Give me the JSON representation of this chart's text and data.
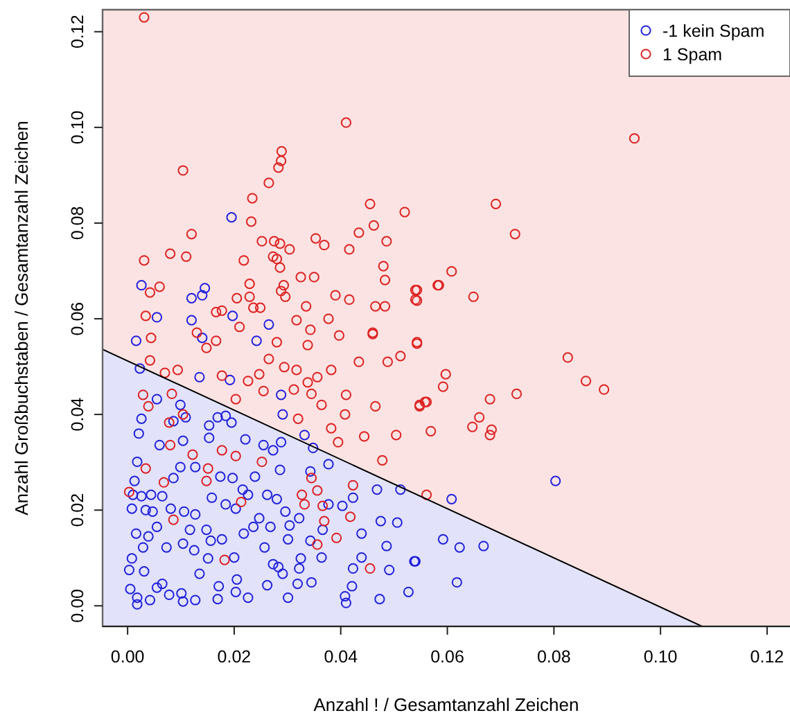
{
  "chart_data": {
    "type": "scatter",
    "xlabel": "Anzahl ! / Gesamtanzahl Zeichen",
    "ylabel": "Anzahl Großbuchstaben / Gesamtanzahl Zeichen",
    "xlim": [
      -0.0047,
      0.1243
    ],
    "ylim": [
      -0.0043,
      0.1246
    ],
    "xticks": [
      {
        "value": 0,
        "label": "0.00"
      },
      {
        "value": 0.02,
        "label": "0.02"
      },
      {
        "value": 0.04,
        "label": "0.04"
      },
      {
        "value": 0.06,
        "label": "0.06"
      },
      {
        "value": 0.08,
        "label": "0.08"
      },
      {
        "value": 0.1,
        "label": "0.10"
      },
      {
        "value": 0.12,
        "label": "0.12"
      }
    ],
    "yticks": [
      {
        "value": 0,
        "label": "0.00"
      },
      {
        "value": 0.02,
        "label": "0.02"
      },
      {
        "value": 0.04,
        "label": "0.04"
      },
      {
        "value": 0.06,
        "label": "0.06"
      },
      {
        "value": 0.08,
        "label": "0.08"
      },
      {
        "value": 0.1,
        "label": "0.10"
      },
      {
        "value": 0.12,
        "label": "0.12"
      }
    ],
    "legend": "top right",
    "marker": "circle",
    "grid": false,
    "series": [
      {
        "name": "-1 kein Spam",
        "color": "#2222dd",
        "x": [
          0.0026,
          0.0055,
          0.012,
          0.012,
          0.014,
          0.0145,
          0.0195,
          0.0197,
          0.0265,
          0.0016,
          0.014,
          0.0242,
          0.0803,
          0.0608,
          0.0592,
          0.0623,
          0.0668,
          0.0618,
          0.054,
          0.0023,
          0.0135,
          0.0192,
          0.0288,
          0.0291,
          0.0055,
          0.0099,
          0.0026,
          0.0021,
          0.006,
          0.0086,
          0.0104,
          0.0109,
          0.0153,
          0.0169,
          0.0184,
          0.0195,
          0.0153,
          0.0221,
          0.0273,
          0.0288,
          0.0255,
          0.0332,
          0.0348,
          0.0377,
          0.0343,
          0.0286,
          0.0239,
          0.0197,
          0.0174,
          0.0099,
          0.0127,
          0.0086,
          0.0018,
          0.0013,
          0.001,
          0.0026,
          0.0044,
          0.0065,
          0.0008,
          0.0034,
          0.0047,
          0.0081,
          0.0106,
          0.0127,
          0.0158,
          0.0184,
          0.0216,
          0.0226,
          0.0262,
          0.028,
          0.0296,
          0.0247,
          0.0203,
          0.0304,
          0.0322,
          0.0403,
          0.0423,
          0.0468,
          0.0512,
          0.0475,
          0.0506,
          0.0439,
          0.0486,
          0.0538,
          0.0439,
          0.0491,
          0.0421,
          0.0408,
          0.0473,
          0.0527,
          0.041,
          0.0364,
          0.0345,
          0.0319,
          0.0301,
          0.0322,
          0.0283,
          0.0273,
          0.0291,
          0.0262,
          0.0226,
          0.0205,
          0.0203,
          0.0171,
          0.0169,
          0.0135,
          0.0127,
          0.0104,
          0.0101,
          0.0078,
          0.0065,
          0.0055,
          0.0042,
          0.0018,
          0.0018,
          0.0005,
          0.0003,
          0.0008,
          0.0031,
          0.0029,
          0.0016,
          0.0039,
          0.0073,
          0.0104,
          0.0125,
          0.0156,
          0.0151,
          0.0177,
          0.0218,
          0.0257,
          0.02,
          0.0117,
          0.0055,
          0.0148,
          0.0236,
          0.0268,
          0.0343,
          0.0366,
          0.0377,
          0.0301,
          0.0325,
          0.0423
        ],
        "values": [
          0.067,
          0.0603,
          0.0597,
          0.0643,
          0.0649,
          0.0664,
          0.0812,
          0.0606,
          0.0588,
          0.0554,
          0.056,
          0.0554,
          0.0261,
          0.0223,
          0.0139,
          0.0122,
          0.0125,
          0.0049,
          0.0093,
          0.0496,
          0.0478,
          0.0472,
          0.0441,
          0.04,
          0.0432,
          0.042,
          0.0391,
          0.036,
          0.0336,
          0.0386,
          0.0345,
          0.0394,
          0.0377,
          0.0394,
          0.0397,
          0.0383,
          0.0351,
          0.0348,
          0.0325,
          0.0342,
          0.0336,
          0.0357,
          0.033,
          0.0296,
          0.0281,
          0.0284,
          0.027,
          0.0267,
          0.027,
          0.029,
          0.029,
          0.0267,
          0.0301,
          0.0261,
          0.0232,
          0.0229,
          0.0232,
          0.0229,
          0.0203,
          0.02,
          0.0197,
          0.0203,
          0.0197,
          0.0191,
          0.0226,
          0.0212,
          0.0243,
          0.0232,
          0.0232,
          0.0223,
          0.0197,
          0.0183,
          0.0203,
          0.0168,
          0.0183,
          0.0209,
          0.0226,
          0.0243,
          0.0243,
          0.0177,
          0.0174,
          0.0151,
          0.0125,
          0.0093,
          0.0101,
          0.0075,
          0.0041,
          0.002,
          0.0014,
          0.0029,
          0.0006,
          0.0101,
          0.0049,
          0.0046,
          0.0017,
          0.0078,
          0.0081,
          0.0087,
          0.0067,
          0.0043,
          0.0017,
          0.0055,
          0.0029,
          0.0041,
          0.0014,
          0.0067,
          0.0012,
          0.0009,
          0.0026,
          0.0023,
          0.0046,
          0.0038,
          0.0012,
          0.0003,
          0.0017,
          0.0035,
          0.0075,
          0.0099,
          0.0072,
          0.0122,
          0.0151,
          0.0145,
          0.0122,
          0.013,
          0.0116,
          0.0136,
          0.0099,
          0.0139,
          0.0151,
          0.0122,
          0.0101,
          0.0159,
          0.0165,
          0.0159,
          0.0165,
          0.0165,
          0.0136,
          0.0159,
          0.0212,
          0.0139,
          0.0099,
          0.0078
        ]
      },
      {
        "name": "1 Spam",
        "color": "#dd2222",
        "x": [
          0.0031,
          0.041,
          0.0289,
          0.0288,
          0.0283,
          0.0265,
          0.0104,
          0.0234,
          0.0455,
          0.052,
          0.0232,
          0.0462,
          0.0434,
          0.012,
          0.0252,
          0.0275,
          0.0286,
          0.0353,
          0.0369,
          0.0486,
          0.0304,
          0.0416,
          0.008,
          0.011,
          0.0031,
          0.0273,
          0.028,
          0.0218,
          0.0286,
          0.048,
          0.0325,
          0.035,
          0.0483,
          0.0229,
          0.0293,
          0.0288,
          0.0296,
          0.006,
          0.0042,
          0.0205,
          0.0229,
          0.039,
          0.0416,
          0.054,
          0.054,
          0.0582,
          0.0166,
          0.0177,
          0.0236,
          0.0249,
          0.0335,
          0.0465,
          0.0483,
          0.0034,
          0.021,
          0.0317,
          0.0377,
          0.0343,
          0.0044,
          0.046,
          0.013,
          0.0951,
          0.0691,
          0.0727,
          0.0608,
          0.0584,
          0.0649,
          0.0543,
          0.0543,
          0.0543,
          0.0826,
          0.086,
          0.0894,
          0.0597,
          0.0592,
          0.068,
          0.073,
          0.0548,
          0.0558,
          0.066,
          0.0647,
          0.0683,
          0.068,
          0.0569,
          0.0561,
          0.0148,
          0.0166,
          0.028,
          0.0338,
          0.0397,
          0.046,
          0.0543,
          0.0434,
          0.0488,
          0.0512,
          0.0042,
          0.0094,
          0.007,
          0.0177,
          0.0226,
          0.0247,
          0.0265,
          0.0294,
          0.0317,
          0.0382,
          0.0338,
          0.0356,
          0.0255,
          0.0312,
          0.0345,
          0.041,
          0.0203,
          0.0364,
          0.032,
          0.0408,
          0.0465,
          0.0548,
          0.0561,
          0.0382,
          0.0395,
          0.0444,
          0.0504,
          0.0478,
          0.0029,
          0.0039,
          0.0083,
          0.0104,
          0.0078,
          0.008,
          0.0122,
          0.0034,
          0.0068,
          0.0003,
          0.0086,
          0.0151,
          0.0177,
          0.0203,
          0.0252,
          0.0213,
          0.0327,
          0.0356,
          0.0345,
          0.0366,
          0.0369,
          0.0332,
          0.0418,
          0.0423,
          0.0392,
          0.0356,
          0.0182,
          0.0455,
          0.0148
        ],
        "values": [
          0.123,
          0.101,
          0.095,
          0.093,
          0.0916,
          0.0884,
          0.091,
          0.0852,
          0.084,
          0.0823,
          0.0803,
          0.0795,
          0.078,
          0.0777,
          0.0762,
          0.0762,
          0.0757,
          0.0768,
          0.0754,
          0.0762,
          0.0745,
          0.0745,
          0.0736,
          0.073,
          0.0722,
          0.073,
          0.0725,
          0.0722,
          0.0707,
          0.071,
          0.0687,
          0.0687,
          0.0681,
          0.0673,
          0.067,
          0.0658,
          0.0646,
          0.0667,
          0.0655,
          0.0643,
          0.0646,
          0.0649,
          0.064,
          0.066,
          0.064,
          0.067,
          0.0614,
          0.0617,
          0.0623,
          0.0623,
          0.0626,
          0.0626,
          0.0626,
          0.0606,
          0.0583,
          0.0597,
          0.06,
          0.0577,
          0.056,
          0.0571,
          0.0571,
          0.0977,
          0.084,
          0.0777,
          0.0699,
          0.067,
          0.0646,
          0.066,
          0.0638,
          0.0548,
          0.0519,
          0.047,
          0.0452,
          0.0484,
          0.0458,
          0.0432,
          0.0443,
          0.0417,
          0.0426,
          0.0394,
          0.0374,
          0.0368,
          0.0357,
          0.0365,
          0.0232,
          0.0539,
          0.0554,
          0.0551,
          0.0545,
          0.0565,
          0.0568,
          0.0551,
          0.051,
          0.051,
          0.0522,
          0.0513,
          0.0493,
          0.0487,
          0.0481,
          0.047,
          0.0484,
          0.0516,
          0.0499,
          0.0493,
          0.0493,
          0.0467,
          0.0478,
          0.0449,
          0.0452,
          0.0443,
          0.0441,
          0.0432,
          0.042,
          0.0391,
          0.04,
          0.0417,
          0.042,
          0.0426,
          0.0371,
          0.0342,
          0.0354,
          0.0357,
          0.0304,
          0.0441,
          0.0417,
          0.0443,
          0.04,
          0.0383,
          0.0336,
          0.0316,
          0.0287,
          0.0258,
          0.0238,
          0.018,
          0.0287,
          0.0325,
          0.0313,
          0.0301,
          0.0217,
          0.0232,
          0.0241,
          0.0267,
          0.0209,
          0.0177,
          0.0212,
          0.0186,
          0.0252,
          0.0142,
          0.0128,
          0.0096,
          0.0078,
          0.0261
        ]
      },
      {
        "type": "line",
        "color": "#000000",
        "marker": "none",
        "x": [
          -0.0047,
          0.1078
        ],
        "values": [
          0.0536,
          -0.0043
        ]
      }
    ]
  }
}
